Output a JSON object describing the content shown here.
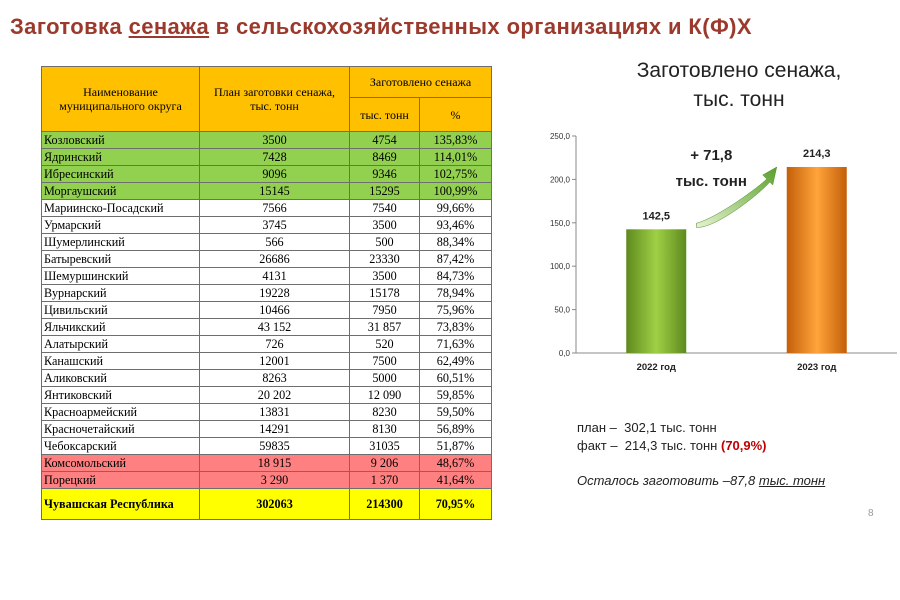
{
  "slide_title": {
    "part1": "Заготовка ",
    "part2": "сенажа",
    "part3": " в сельскохозяйственных организациях  и К(Ф)Х"
  },
  "table": {
    "headers": {
      "name": "Наименование муниципального округа",
      "plan": "План заготовки сенажа, тыс. тонн",
      "harvested": "Заготовлено сенажа",
      "tons": "тыс. тонн",
      "percent": "%"
    },
    "rows": [
      {
        "name": "Козловский",
        "plan": "3500",
        "fact": "4754",
        "pct": "135,83%",
        "status": "green"
      },
      {
        "name": "Ядринский",
        "plan": "7428",
        "fact": "8469",
        "pct": "114,01%",
        "status": "green"
      },
      {
        "name": "Ибресинский",
        "plan": "9096",
        "fact": "9346",
        "pct": "102,75%",
        "status": "green"
      },
      {
        "name": "Моргаушский",
        "plan": "15145",
        "fact": "15295",
        "pct": "100,99%",
        "status": "green"
      },
      {
        "name": "Мариинско-Посадский",
        "plan": "7566",
        "fact": "7540",
        "pct": "99,66%",
        "status": "none"
      },
      {
        "name": "Урмарский",
        "plan": "3745",
        "fact": "3500",
        "pct": "93,46%",
        "status": "none"
      },
      {
        "name": "Шумерлинский",
        "plan": "566",
        "fact": "500",
        "pct": "88,34%",
        "status": "none"
      },
      {
        "name": "Батыревский",
        "plan": "26686",
        "fact": "23330",
        "pct": "87,42%",
        "status": "none"
      },
      {
        "name": "Шемуршинский",
        "plan": "4131",
        "fact": "3500",
        "pct": "84,73%",
        "status": "none"
      },
      {
        "name": "Вурнарский",
        "plan": "19228",
        "fact": "15178",
        "pct": "78,94%",
        "status": "none"
      },
      {
        "name": "Цивильский",
        "plan": "10466",
        "fact": "7950",
        "pct": "75,96%",
        "status": "none"
      },
      {
        "name": "Яльчикский",
        "plan": "43 152",
        "fact": "31 857",
        "pct": "73,83%",
        "status": "none"
      },
      {
        "name": "Алатырский",
        "plan": "726",
        "fact": "520",
        "pct": "71,63%",
        "status": "none"
      },
      {
        "name": "Канашский",
        "plan": "12001",
        "fact": "7500",
        "pct": "62,49%",
        "status": "none"
      },
      {
        "name": "Аликовский",
        "plan": "8263",
        "fact": "5000",
        "pct": "60,51%",
        "status": "none"
      },
      {
        "name": "Янтиковский",
        "plan": "20 202",
        "fact": "12 090",
        "pct": "59,85%",
        "status": "none"
      },
      {
        "name": "Красноармейский",
        "plan": "13831",
        "fact": "8230",
        "pct": "59,50%",
        "status": "none"
      },
      {
        "name": "Красночетайский",
        "plan": "14291",
        "fact": "8130",
        "pct": "56,89%",
        "status": "none"
      },
      {
        "name": "Чебоксарский",
        "plan": "59835",
        "fact": "31035",
        "pct": "51,87%",
        "status": "none"
      },
      {
        "name": "Комсомольский",
        "plan": "18 915",
        "fact": "9 206",
        "pct": "48,67%",
        "status": "red"
      },
      {
        "name": "Порецкий",
        "plan": "3 290",
        "fact": "1 370",
        "pct": "41,64%",
        "status": "red"
      }
    ],
    "total": {
      "name": "Чувашская Республика",
      "plan": "302063",
      "fact": "214300",
      "pct": "70,95%"
    }
  },
  "chart_title": {
    "line1": "Заготовлено сенажа,",
    "line2": "тыс. тонн"
  },
  "chart_data": {
    "type": "bar",
    "categories": [
      "2022 год",
      "2023 год"
    ],
    "values": [
      142.5,
      214.3
    ],
    "value_labels": [
      "142,5",
      "214,3"
    ],
    "ylim": [
      0,
      250
    ],
    "yticks": [
      "0,0",
      "50,0",
      "100,0",
      "150,0",
      "200,0",
      "250,0"
    ],
    "ytick_values": [
      0,
      50,
      100,
      150,
      200,
      250
    ],
    "annotation": {
      "line1": "+ 71,8",
      "line2": "тыс. тонн"
    },
    "bar_colors": [
      "#8cbf3f",
      "#f7921e"
    ],
    "grid": false
  },
  "notes": {
    "plan_label": "план –",
    "plan_value": "302,1 тыс. тонн",
    "fact_label": "факт –",
    "fact_value": "214,3 тыс. тонн",
    "fact_pct": "(70,9%)",
    "remaining_text": "Осталось заготовить –87,8",
    "remaining_unit": "тыс. тонн"
  },
  "page_number": "8",
  "colors": {
    "title": "#9b3a2c",
    "header_bg": "#ffc000",
    "green_row": "#92d050",
    "red_row": "#ff8080",
    "total_row": "#ffff00",
    "pct_highlight": "#c00000"
  }
}
